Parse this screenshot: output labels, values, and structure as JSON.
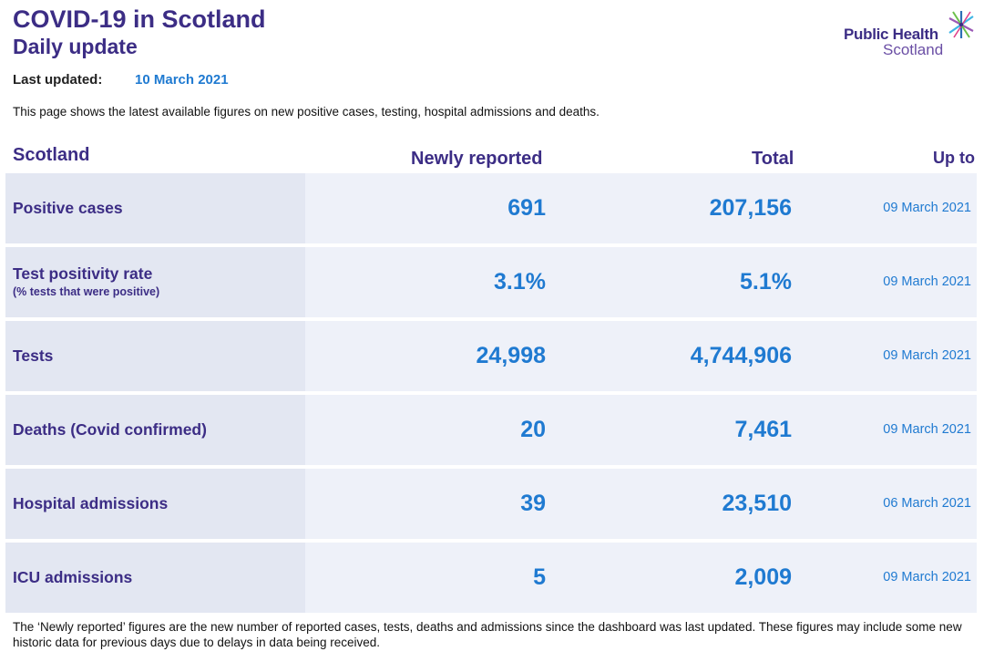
{
  "header": {
    "title": "COVID-19 in Scotland",
    "subtitle": "Daily update",
    "logo_line1": "Public Health",
    "logo_line2": "Scotland",
    "logo_star_colors": [
      "#6cc04a",
      "#3fb5e5",
      "#9b59b6",
      "#2c6fb5",
      "#e0408a",
      "#3c2d85"
    ]
  },
  "updated": {
    "label": "Last updated:",
    "value": "10 March 2021"
  },
  "intro": "This page shows the latest available figures on new positive cases, testing, hospital admissions and deaths.",
  "table": {
    "col_region": "Scotland",
    "col_new": "Newly reported",
    "col_total": "Total",
    "col_upto": "Up to",
    "rows": [
      {
        "label": "Positive cases",
        "sub": "",
        "new": "691",
        "total": "207,156",
        "date": "09 March 2021"
      },
      {
        "label": "Test positivity rate",
        "sub": "(% tests that were positive)",
        "new": "3.1%",
        "total": "5.1%",
        "date": "09 March 2021"
      },
      {
        "label": "Tests",
        "sub": "",
        "new": "24,998",
        "total": "4,744,906",
        "date": "09 March 2021"
      },
      {
        "label": "Deaths (Covid confirmed)",
        "sub": "",
        "new": "20",
        "total": "7,461",
        "date": "09 March 2021"
      },
      {
        "label": "Hospital admissions",
        "sub": "",
        "new": "39",
        "total": "23,510",
        "date": "06 March 2021"
      },
      {
        "label": "ICU admissions",
        "sub": "",
        "new": "5",
        "total": "2,009",
        "date": "09 March 2021"
      }
    ]
  },
  "footnote": "The ‘Newly reported’ figures are the new number of reported cases, tests, deaths and admissions since the dashboard was last updated. These figures may include some new historic data for previous days due to delays in data being received.",
  "colors": {
    "heading": "#3c2d85",
    "value": "#1f7ad1",
    "row_bg": "#eef1f9",
    "label_bg": "#e3e7f2"
  }
}
